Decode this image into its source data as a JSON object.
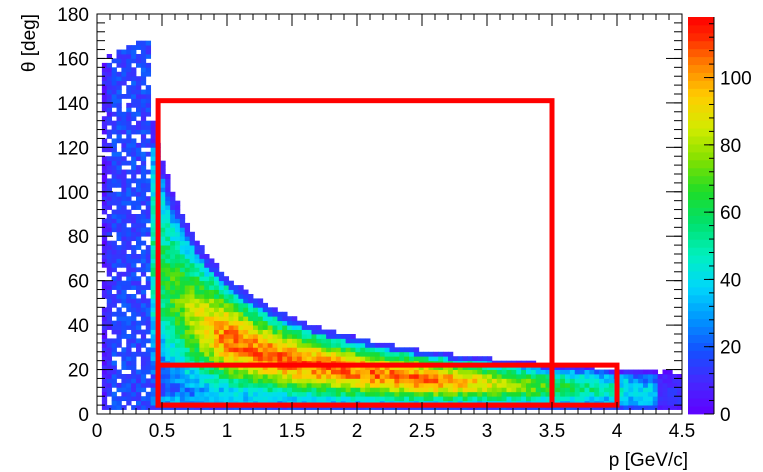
{
  "chart_data": {
    "type": "heatmap",
    "title": "",
    "xlabel": "p [GeV/c]",
    "ylabel": "θ [deg]",
    "xlim": [
      0,
      4.5
    ],
    "ylim": [
      0,
      180
    ],
    "x_ticks": [
      "0",
      "0.5",
      "1",
      "1.5",
      "2",
      "2.5",
      "3",
      "3.5",
      "4",
      "4.5"
    ],
    "y_ticks": [
      "0",
      "20",
      "40",
      "60",
      "80",
      "100",
      "120",
      "140",
      "160",
      "180"
    ],
    "colorbar": {
      "range": [
        0,
        118
      ],
      "ticks": [
        "0",
        "20",
        "40",
        "60",
        "80",
        "100"
      ]
    },
    "regions": [
      {
        "p_min": 0.47,
        "p_max": 3.5,
        "theta_min": 4,
        "theta_max": 141,
        "color": "#ff0000"
      },
      {
        "p_min": 0.47,
        "p_max": 4.0,
        "theta_min": 4,
        "theta_max": 22,
        "color": "#ff0000"
      }
    ]
  }
}
